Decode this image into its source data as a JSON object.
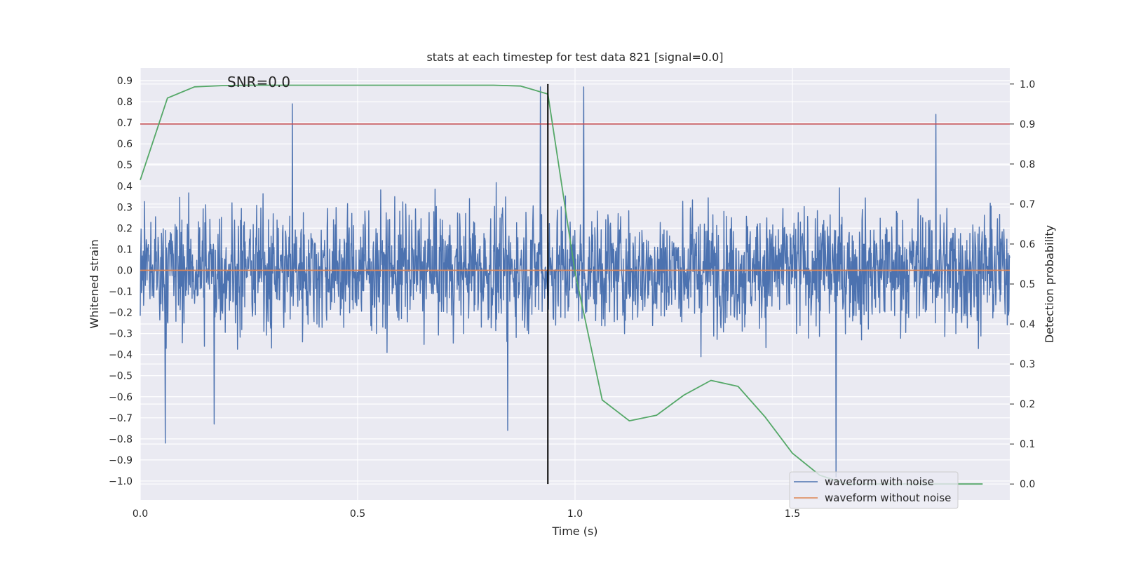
{
  "chart_data": {
    "type": "line",
    "title": "stats at each timestep for test data 821 [signal=0.0]",
    "xlabel": "Time (s)",
    "ylabel": "Whitened strain",
    "y2label": "Detection probability",
    "annotation": "SNR=0.0",
    "xlim": [
      0.0,
      2.0
    ],
    "ylim": [
      -1.09,
      0.96
    ],
    "y2lim": [
      -0.04,
      1.04
    ],
    "x_ticks": [
      0.0,
      0.5,
      1.0,
      1.5
    ],
    "x_tick_labels": [
      "0.0",
      "0.5",
      "1.0",
      "1.5"
    ],
    "y_ticks": [
      0.9,
      0.8,
      0.7,
      0.6,
      0.5,
      0.4,
      0.3,
      0.2,
      0.1,
      0.0,
      -0.1,
      -0.2,
      -0.3,
      -0.4,
      -0.5,
      -0.6,
      -0.7,
      -0.8,
      -0.9,
      -1.0
    ],
    "y_tick_labels": [
      "0.9",
      "0.8",
      "0.7",
      "0.6",
      "0.5",
      "0.4",
      "0.3",
      "0.2",
      "0.1",
      "0.0",
      "−0.1",
      "−0.2",
      "−0.3",
      "−0.4",
      "−0.5",
      "−0.6",
      "−0.7",
      "−0.8",
      "−0.9",
      "−1.0"
    ],
    "y2_ticks": [
      1.0,
      0.9,
      0.8,
      0.7,
      0.6,
      0.5,
      0.4,
      0.3,
      0.2,
      0.1,
      0.0
    ],
    "y2_tick_labels": [
      "1.0",
      "0.9",
      "0.8",
      "0.7",
      "0.6",
      "0.5",
      "0.4",
      "0.3",
      "0.2",
      "0.1",
      "0.0"
    ],
    "legend": {
      "position": "lower-right",
      "entries": [
        {
          "label": "waveform with noise",
          "color": "#4c72b0"
        },
        {
          "label": "waveform without noise",
          "color": "#dd8452"
        }
      ]
    },
    "series": [
      {
        "name": "waveform with noise",
        "color": "#4c72b0",
        "axis": "left",
        "kind": "noise",
        "samples": 2048,
        "x_range": [
          0.0,
          2.0
        ],
        "typical_range": [
          -0.5,
          0.6
        ],
        "notable_points": [
          {
            "x": 0.058,
            "y": -0.82
          },
          {
            "x": 0.17,
            "y": -0.73
          },
          {
            "x": 0.35,
            "y": 0.79
          },
          {
            "x": 0.845,
            "y": -0.76
          },
          {
            "x": 0.92,
            "y": 0.87
          },
          {
            "x": 1.02,
            "y": 0.87
          },
          {
            "x": 1.6,
            "y": -0.98
          },
          {
            "x": 1.83,
            "y": 0.74
          }
        ]
      },
      {
        "name": "waveform without noise",
        "color": "#dd8452",
        "axis": "left",
        "x": [
          0.0,
          2.0
        ],
        "y": [
          0.0,
          0.0
        ]
      },
      {
        "name": "detection probability",
        "color": "#55a868",
        "axis": "right",
        "x": [
          0.0,
          0.0625,
          0.125,
          0.1875,
          0.25,
          0.3125,
          0.375,
          0.4375,
          0.5,
          0.5625,
          0.625,
          0.6875,
          0.75,
          0.8125,
          0.875,
          0.9375,
          1.0,
          1.0625,
          1.125,
          1.1875,
          1.25,
          1.3125,
          1.375,
          1.4375,
          1.5,
          1.5625,
          1.625,
          1.6875,
          1.75,
          1.8125,
          1.875,
          1.9375
        ],
        "y": [
          0.76,
          0.965,
          0.993,
          0.996,
          0.997,
          0.997,
          0.997,
          0.997,
          0.997,
          0.997,
          0.997,
          0.997,
          0.997,
          0.997,
          0.995,
          0.975,
          0.53,
          0.21,
          0.158,
          0.172,
          0.222,
          0.259,
          0.244,
          0.167,
          0.077,
          0.022,
          0.0,
          0.0,
          0.0,
          0.0,
          0.0,
          0.0
        ]
      }
    ],
    "threshold_line": {
      "axis": "right",
      "y": 0.9,
      "color": "#c44e52"
    },
    "marker_line": {
      "x": 0.9375,
      "y2_range": [
        0.0,
        1.0
      ],
      "color": "#000000"
    }
  }
}
